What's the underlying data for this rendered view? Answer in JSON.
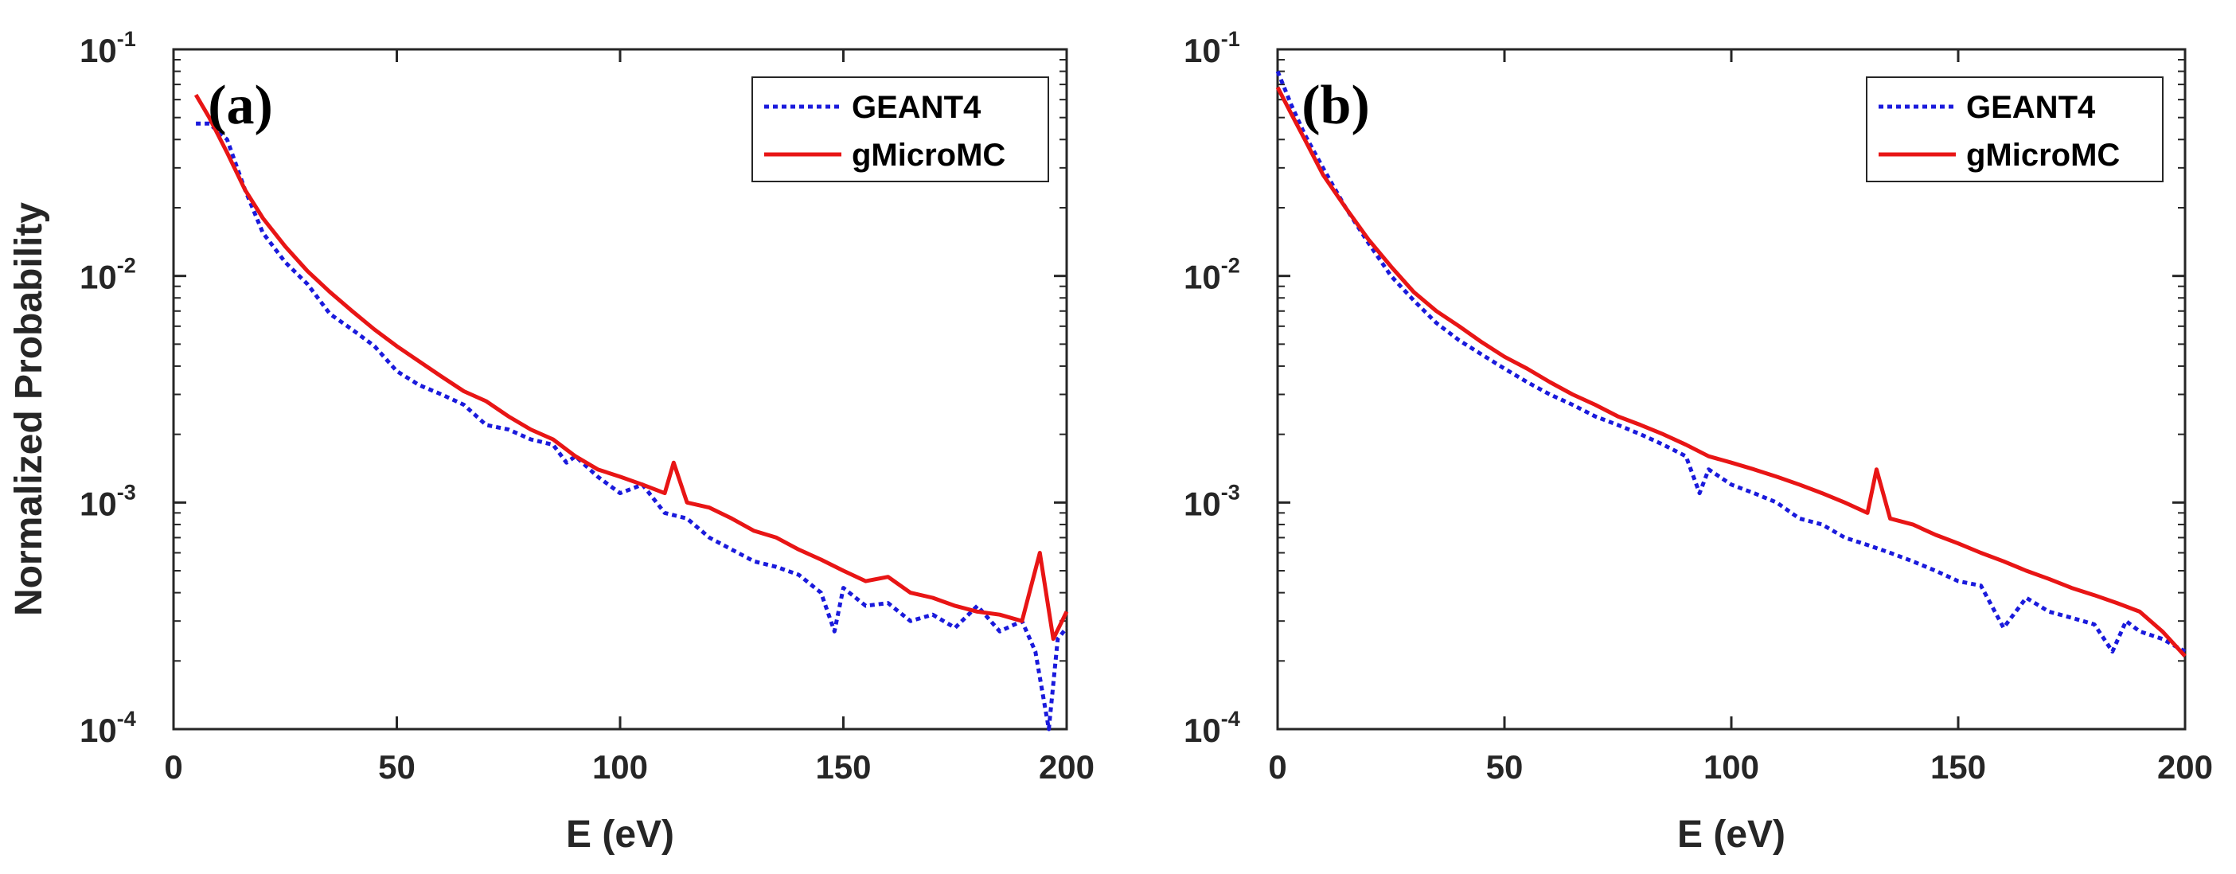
{
  "chart_data": [
    {
      "type": "line",
      "panel_label": "(a)",
      "xlabel": "E (eV)",
      "ylabel": "Normalized Probability",
      "xlim": [
        0,
        200
      ],
      "ylim": [
        0.0001,
        0.1
      ],
      "yscale": "log",
      "xticks": [
        "0",
        "50",
        "100",
        "150",
        "200"
      ],
      "yticks": [
        {
          "base": "10",
          "exp": "-4",
          "value": 0.0001
        },
        {
          "base": "10",
          "exp": "-3",
          "value": 0.001
        },
        {
          "base": "10",
          "exp": "-2",
          "value": 0.01
        },
        {
          "base": "10",
          "exp": "-1",
          "value": 0.1
        }
      ],
      "legend_position": "top-right",
      "series": [
        {
          "name": "GEANT4",
          "color": "#1a1adc",
          "style": "dotted",
          "x": [
            5,
            8,
            12,
            16,
            20,
            25,
            30,
            35,
            40,
            45,
            50,
            55,
            60,
            65,
            70,
            75,
            80,
            85,
            88,
            90,
            95,
            100,
            105,
            110,
            115,
            120,
            125,
            130,
            135,
            140,
            145,
            148,
            150,
            155,
            160,
            165,
            170,
            175,
            180,
            185,
            190,
            193,
            196,
            198,
            200
          ],
          "y": [
            0.047,
            0.047,
            0.04,
            0.024,
            0.0155,
            0.0115,
            0.0092,
            0.0068,
            0.0058,
            0.0049,
            0.0038,
            0.0033,
            0.003,
            0.0027,
            0.0022,
            0.0021,
            0.0019,
            0.0018,
            0.0015,
            0.0016,
            0.0013,
            0.0011,
            0.0012,
            0.0009,
            0.00085,
            0.0007,
            0.00062,
            0.00055,
            0.00052,
            0.00048,
            0.0004,
            0.00027,
            0.00042,
            0.00035,
            0.00036,
            0.0003,
            0.00032,
            0.00028,
            0.00035,
            0.00027,
            0.0003,
            0.00022,
            0.0001,
            0.00025,
            0.00028
          ]
        },
        {
          "name": "gMicroMC",
          "color": "#e81515",
          "style": "solid",
          "x": [
            5,
            8,
            12,
            16,
            20,
            25,
            30,
            35,
            40,
            45,
            50,
            55,
            60,
            65,
            70,
            75,
            80,
            85,
            90,
            95,
            100,
            105,
            110,
            112,
            115,
            120,
            125,
            130,
            135,
            140,
            145,
            150,
            155,
            160,
            165,
            170,
            175,
            180,
            185,
            190,
            194,
            197,
            200
          ],
          "y": [
            0.063,
            0.05,
            0.035,
            0.024,
            0.018,
            0.0135,
            0.0105,
            0.0085,
            0.007,
            0.0058,
            0.0049,
            0.0042,
            0.0036,
            0.0031,
            0.0028,
            0.0024,
            0.0021,
            0.0019,
            0.0016,
            0.0014,
            0.0013,
            0.0012,
            0.0011,
            0.0015,
            0.001,
            0.00095,
            0.00085,
            0.00075,
            0.0007,
            0.00062,
            0.00056,
            0.0005,
            0.00045,
            0.00047,
            0.0004,
            0.00038,
            0.00035,
            0.00033,
            0.00032,
            0.0003,
            0.0006,
            0.00025,
            0.00033
          ]
        }
      ]
    },
    {
      "type": "line",
      "panel_label": "(b)",
      "xlabel": "E (eV)",
      "ylabel": "",
      "xlim": [
        0,
        200
      ],
      "ylim": [
        0.0001,
        0.1
      ],
      "yscale": "log",
      "xticks": [
        "0",
        "50",
        "100",
        "150",
        "200"
      ],
      "yticks": [
        {
          "base": "10",
          "exp": "-4",
          "value": 0.0001
        },
        {
          "base": "10",
          "exp": "-3",
          "value": 0.001
        },
        {
          "base": "10",
          "exp": "-2",
          "value": 0.01
        },
        {
          "base": "10",
          "exp": "-1",
          "value": 0.1
        }
      ],
      "legend_position": "top-right",
      "series": [
        {
          "name": "GEANT4",
          "color": "#1a1adc",
          "style": "dotted",
          "x": [
            0,
            3,
            6,
            10,
            15,
            20,
            25,
            30,
            35,
            40,
            45,
            50,
            55,
            60,
            65,
            70,
            75,
            80,
            85,
            90,
            93,
            95,
            100,
            105,
            110,
            115,
            120,
            125,
            130,
            135,
            140,
            145,
            150,
            155,
            160,
            165,
            170,
            175,
            180,
            184,
            187,
            190,
            195,
            200
          ],
          "y": [
            0.08,
            0.057,
            0.042,
            0.03,
            0.02,
            0.014,
            0.01,
            0.0078,
            0.0062,
            0.0052,
            0.0045,
            0.0039,
            0.0034,
            0.003,
            0.0027,
            0.0024,
            0.0022,
            0.002,
            0.0018,
            0.0016,
            0.0011,
            0.0014,
            0.0012,
            0.0011,
            0.001,
            0.00085,
            0.0008,
            0.0007,
            0.00065,
            0.0006,
            0.00055,
            0.0005,
            0.00045,
            0.00043,
            0.00028,
            0.00038,
            0.00033,
            0.00031,
            0.00029,
            0.00022,
            0.0003,
            0.00027,
            0.00025,
            0.00022
          ]
        },
        {
          "name": "gMicroMC",
          "color": "#e81515",
          "style": "solid",
          "x": [
            0,
            3,
            6,
            10,
            15,
            20,
            25,
            30,
            35,
            40,
            45,
            50,
            55,
            60,
            65,
            70,
            75,
            80,
            85,
            90,
            95,
            100,
            105,
            110,
            115,
            120,
            125,
            130,
            132,
            135,
            140,
            145,
            150,
            155,
            160,
            165,
            170,
            175,
            180,
            185,
            190,
            195,
            200
          ],
          "y": [
            0.068,
            0.052,
            0.04,
            0.028,
            0.02,
            0.0145,
            0.011,
            0.0085,
            0.007,
            0.006,
            0.0051,
            0.0044,
            0.0039,
            0.0034,
            0.003,
            0.0027,
            0.0024,
            0.0022,
            0.002,
            0.0018,
            0.0016,
            0.0015,
            0.0014,
            0.0013,
            0.0012,
            0.0011,
            0.001,
            0.0009,
            0.0014,
            0.00085,
            0.0008,
            0.00072,
            0.00066,
            0.0006,
            0.00055,
            0.0005,
            0.00046,
            0.00042,
            0.00039,
            0.00036,
            0.00033,
            0.00027,
            0.00021
          ]
        }
      ]
    }
  ]
}
